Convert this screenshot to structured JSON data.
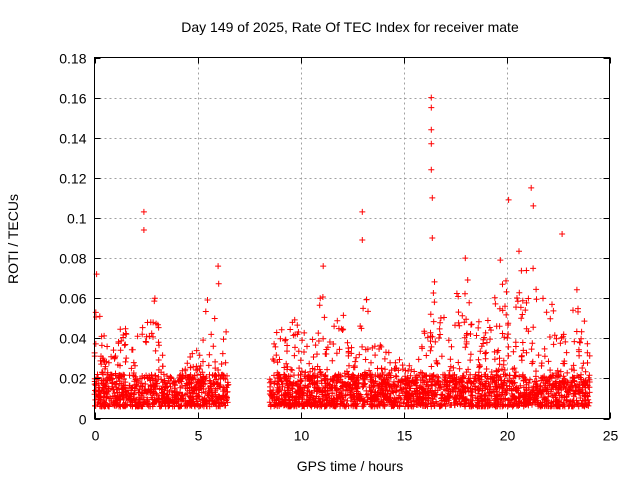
{
  "chart_data": {
    "type": "scatter",
    "title": "Day 149 of 2025, Rate Of TEC Index for receiver mate",
    "xlabel": "GPS time / hours",
    "ylabel": "ROTI / TECUs",
    "xlim": [
      0,
      25
    ],
    "ylim": [
      0,
      0.18
    ],
    "xticks": [
      0,
      5,
      10,
      15,
      20,
      25
    ],
    "xtick_labels": [
      "0",
      "5",
      "10",
      "15",
      "20",
      "25"
    ],
    "yticks": [
      0,
      0.02,
      0.04,
      0.06,
      0.08,
      0.1,
      0.12,
      0.14,
      0.16,
      0.18
    ],
    "ytick_labels": [
      "0",
      "0.02",
      "0.04",
      "0.06",
      "0.08",
      "0.1",
      "0.12",
      "0.14",
      "0.16",
      "0.18"
    ],
    "grid": true,
    "marker": "+",
    "color": "#ff0000",
    "data_gap_hours": [
      6.5,
      8.5
    ],
    "notable_points": [
      {
        "x": 2.4,
        "y": 0.103
      },
      {
        "x": 2.4,
        "y": 0.094
      },
      {
        "x": 13.0,
        "y": 0.103
      },
      {
        "x": 13.0,
        "y": 0.089
      },
      {
        "x": 16.35,
        "y": 0.16
      },
      {
        "x": 16.35,
        "y": 0.155
      },
      {
        "x": 16.35,
        "y": 0.144
      },
      {
        "x": 16.35,
        "y": 0.137
      },
      {
        "x": 16.35,
        "y": 0.124
      },
      {
        "x": 16.4,
        "y": 0.11
      },
      {
        "x": 16.4,
        "y": 0.09
      },
      {
        "x": 20.1,
        "y": 0.109
      },
      {
        "x": 21.2,
        "y": 0.115
      },
      {
        "x": 21.3,
        "y": 0.106
      },
      {
        "x": 22.7,
        "y": 0.092
      },
      {
        "x": 6.0,
        "y": 0.076
      },
      {
        "x": 11.1,
        "y": 0.076
      },
      {
        "x": 18.0,
        "y": 0.08
      },
      {
        "x": 19.7,
        "y": 0.079
      },
      {
        "x": 0.1,
        "y": 0.072
      }
    ],
    "envelope": [
      {
        "x": 0.0,
        "y": 0.05
      },
      {
        "x": 0.2,
        "y": 0.062
      },
      {
        "x": 0.5,
        "y": 0.045
      },
      {
        "x": 0.8,
        "y": 0.033
      },
      {
        "x": 1.2,
        "y": 0.052
      },
      {
        "x": 1.6,
        "y": 0.045
      },
      {
        "x": 2.0,
        "y": 0.04
      },
      {
        "x": 2.5,
        "y": 0.052
      },
      {
        "x": 3.0,
        "y": 0.063
      },
      {
        "x": 3.5,
        "y": 0.02
      },
      {
        "x": 4.0,
        "y": 0.02
      },
      {
        "x": 4.5,
        "y": 0.028
      },
      {
        "x": 5.0,
        "y": 0.045
      },
      {
        "x": 5.5,
        "y": 0.062
      },
      {
        "x": 6.0,
        "y": 0.07
      },
      {
        "x": 6.45,
        "y": 0.04
      },
      {
        "x": 8.6,
        "y": 0.04
      },
      {
        "x": 9.0,
        "y": 0.045
      },
      {
        "x": 9.5,
        "y": 0.055
      },
      {
        "x": 10.0,
        "y": 0.045
      },
      {
        "x": 10.5,
        "y": 0.04
      },
      {
        "x": 11.0,
        "y": 0.065
      },
      {
        "x": 11.5,
        "y": 0.045
      },
      {
        "x": 12.0,
        "y": 0.055
      },
      {
        "x": 12.5,
        "y": 0.04
      },
      {
        "x": 13.0,
        "y": 0.075
      },
      {
        "x": 13.5,
        "y": 0.045
      },
      {
        "x": 14.0,
        "y": 0.04
      },
      {
        "x": 14.5,
        "y": 0.04
      },
      {
        "x": 15.0,
        "y": 0.035
      },
      {
        "x": 15.5,
        "y": 0.025
      },
      {
        "x": 16.0,
        "y": 0.045
      },
      {
        "x": 16.5,
        "y": 0.07
      },
      {
        "x": 17.0,
        "y": 0.05
      },
      {
        "x": 17.5,
        "y": 0.06
      },
      {
        "x": 18.0,
        "y": 0.075
      },
      {
        "x": 18.5,
        "y": 0.055
      },
      {
        "x": 19.0,
        "y": 0.05
      },
      {
        "x": 19.5,
        "y": 0.065
      },
      {
        "x": 20.0,
        "y": 0.07
      },
      {
        "x": 20.5,
        "y": 0.09
      },
      {
        "x": 21.0,
        "y": 0.095
      },
      {
        "x": 21.5,
        "y": 0.085
      },
      {
        "x": 22.0,
        "y": 0.06
      },
      {
        "x": 22.5,
        "y": 0.065
      },
      {
        "x": 23.0,
        "y": 0.05
      },
      {
        "x": 23.5,
        "y": 0.07
      },
      {
        "x": 24.0,
        "y": 0.035
      }
    ]
  }
}
